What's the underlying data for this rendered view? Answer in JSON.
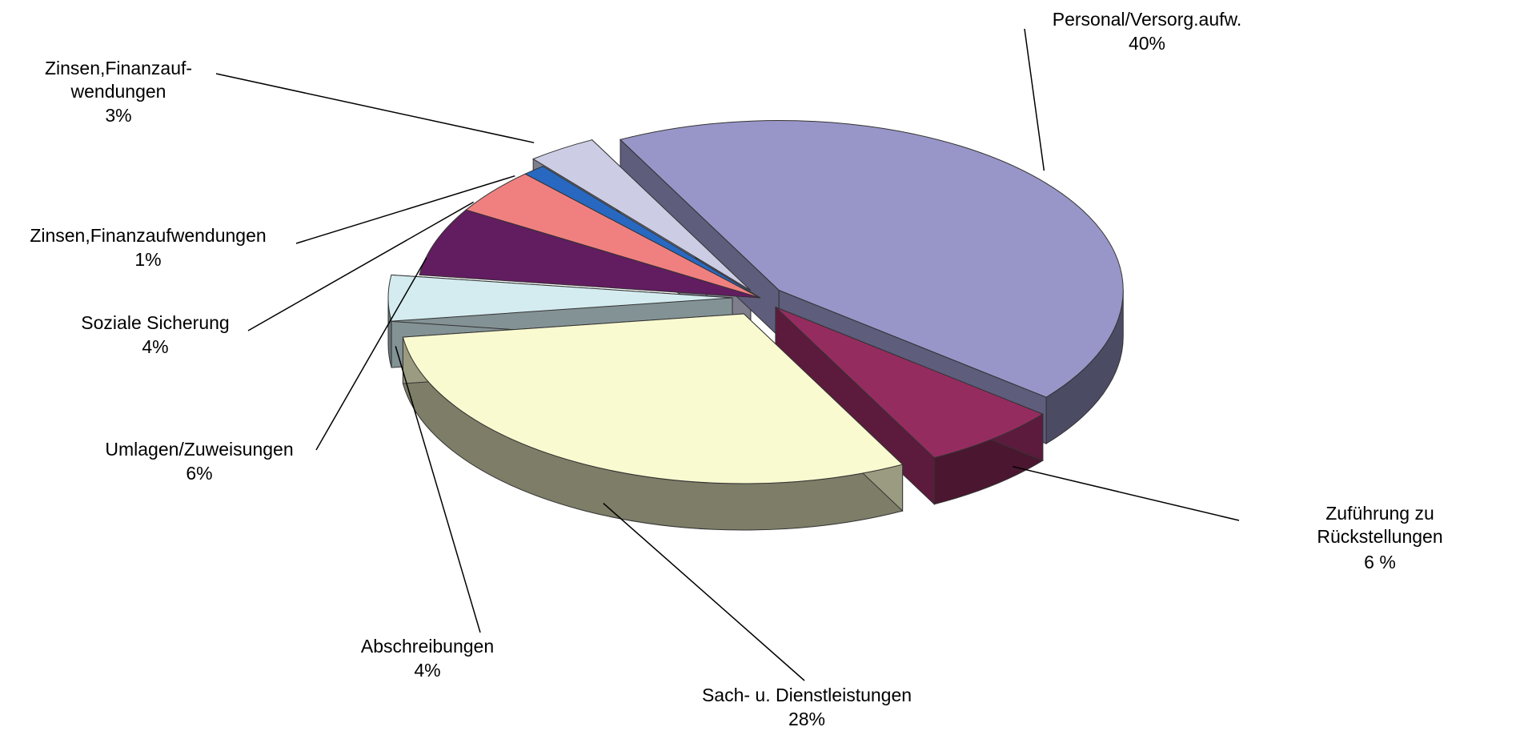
{
  "chart_data": {
    "type": "pie3d",
    "categories": [
      "Personal/Versorg.aufw.",
      "Zuführung zu Rückstellungen",
      "Sach- u. Dienstleistungen",
      "Abschreibungen",
      "Umlagen/Zuweisungen",
      "Soziale Sicherung",
      "Zinsen,Finanzaufwendungen",
      "Zinsen,Finanzauf-\nwendungen"
    ],
    "values": [
      40,
      6,
      28,
      4,
      6,
      4,
      1,
      3
    ],
    "value_labels": [
      "40%",
      "6 %",
      "28%",
      "4%",
      "6%",
      "4%",
      "1%",
      "3%"
    ],
    "colors": [
      "#9896c8",
      "#952c60",
      "#fafad0",
      "#d4ecf0",
      "#621c60",
      "#f08080",
      "#2868c0",
      "#ccccE4"
    ]
  }
}
